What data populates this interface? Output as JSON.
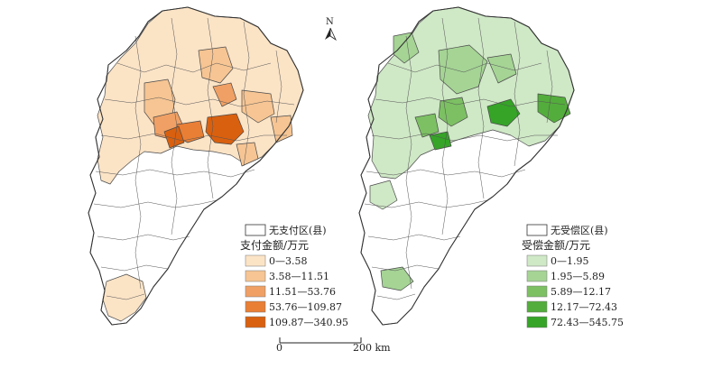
{
  "north_arrow": {
    "label": "N"
  },
  "left_map": {
    "no_region_label": "无支付区(县)",
    "legend_title": "支付金额/万元",
    "classes": [
      {
        "label": "0—3.58",
        "color": "#fbe3c6"
      },
      {
        "label": "3.58—11.51",
        "color": "#f6c593"
      },
      {
        "label": "11.51—53.76",
        "color": "#f0a064"
      },
      {
        "label": "53.76—109.87",
        "color": "#e97f35"
      },
      {
        "label": "109.87—340.95",
        "color": "#d9600f"
      }
    ]
  },
  "right_map": {
    "no_region_label": "无受偿区(县)",
    "legend_title": "受偿金额/万元",
    "classes": [
      {
        "label": "0—1.95",
        "color": "#cfe8c6"
      },
      {
        "label": "1.95—5.89",
        "color": "#a5d495"
      },
      {
        "label": "5.89—12.17",
        "color": "#7cc063"
      },
      {
        "label": "12.17—72.43",
        "color": "#53ad3c"
      },
      {
        "label": "72.43—545.75",
        "color": "#35a427"
      }
    ]
  },
  "scale_bar": {
    "start_label": "0",
    "end_label": "200 km"
  }
}
